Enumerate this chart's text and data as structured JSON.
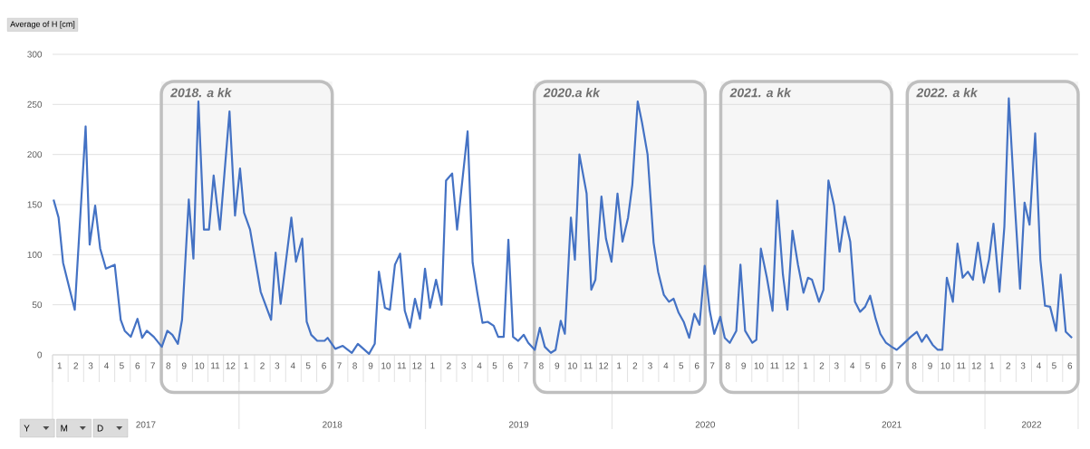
{
  "chart_data": {
    "type": "line",
    "ylabel": "Average of H [cm]",
    "annotations": [
      "Y",
      "M",
      "D"
    ],
    "xlim": [
      "2017-01-01",
      "2022-07-01"
    ],
    "ylim": [
      0,
      300
    ],
    "yticks": [
      0,
      50,
      100,
      150,
      200,
      250,
      300
    ],
    "grid": "y",
    "line_style": "solid",
    "xticks": [
      {
        "value": "2017-01-15",
        "label": "1"
      },
      {
        "value": "2017-02-15",
        "label": "2"
      },
      {
        "value": "2017-03-15",
        "label": "3"
      },
      {
        "value": "2017-04-15",
        "label": "4"
      },
      {
        "value": "2017-05-15",
        "label": "5"
      },
      {
        "value": "2017-06-15",
        "label": "6"
      },
      {
        "value": "2017-07-15",
        "label": "7"
      },
      {
        "value": "2017-08-15",
        "label": "8"
      },
      {
        "value": "2017-09-15",
        "label": "9"
      },
      {
        "value": "2017-10-15",
        "label": "10"
      },
      {
        "value": "2017-11-15",
        "label": "11"
      },
      {
        "value": "2017-12-15",
        "label": "12"
      },
      {
        "value": "2018-01-15",
        "label": "1"
      },
      {
        "value": "2018-02-15",
        "label": "2"
      },
      {
        "value": "2018-03-15",
        "label": "3"
      },
      {
        "value": "2018-04-15",
        "label": "4"
      },
      {
        "value": "2018-05-15",
        "label": "5"
      },
      {
        "value": "2018-06-15",
        "label": "6"
      },
      {
        "value": "2018-07-15",
        "label": "7"
      },
      {
        "value": "2018-08-15",
        "label": "8"
      },
      {
        "value": "2018-09-15",
        "label": "9"
      },
      {
        "value": "2018-10-15",
        "label": "10"
      },
      {
        "value": "2018-11-15",
        "label": "11"
      },
      {
        "value": "2018-12-15",
        "label": "12"
      },
      {
        "value": "2019-01-15",
        "label": "1"
      },
      {
        "value": "2019-02-15",
        "label": "2"
      },
      {
        "value": "2019-03-15",
        "label": "3"
      },
      {
        "value": "2019-04-15",
        "label": "4"
      },
      {
        "value": "2019-05-15",
        "label": "5"
      },
      {
        "value": "2019-06-15",
        "label": "6"
      },
      {
        "value": "2019-07-15",
        "label": "7"
      },
      {
        "value": "2019-08-15",
        "label": "8"
      },
      {
        "value": "2019-09-15",
        "label": "9"
      },
      {
        "value": "2019-10-15",
        "label": "10"
      },
      {
        "value": "2019-11-15",
        "label": "11"
      },
      {
        "value": "2019-12-15",
        "label": "12"
      },
      {
        "value": "2020-01-15",
        "label": "1"
      },
      {
        "value": "2020-02-15",
        "label": "2"
      },
      {
        "value": "2020-03-15",
        "label": "3"
      },
      {
        "value": "2020-04-15",
        "label": "4"
      },
      {
        "value": "2020-05-15",
        "label": "5"
      },
      {
        "value": "2020-06-15",
        "label": "6"
      },
      {
        "value": "2020-07-15",
        "label": "7"
      },
      {
        "value": "2020-08-15",
        "label": "8"
      },
      {
        "value": "2020-09-15",
        "label": "9"
      },
      {
        "value": "2020-10-15",
        "label": "10"
      },
      {
        "value": "2020-11-15",
        "label": "11"
      },
      {
        "value": "2020-12-15",
        "label": "12"
      },
      {
        "value": "2021-01-15",
        "label": "1"
      },
      {
        "value": "2021-02-15",
        "label": "2"
      },
      {
        "value": "2021-03-15",
        "label": "3"
      },
      {
        "value": "2021-04-15",
        "label": "4"
      },
      {
        "value": "2021-05-15",
        "label": "5"
      },
      {
        "value": "2021-06-15",
        "label": "6"
      },
      {
        "value": "2021-07-15",
        "label": "7"
      },
      {
        "value": "2021-08-15",
        "label": "8"
      },
      {
        "value": "2021-09-15",
        "label": "9"
      },
      {
        "value": "2021-10-15",
        "label": "10"
      },
      {
        "value": "2021-11-15",
        "label": "11"
      },
      {
        "value": "2021-12-15",
        "label": "12"
      },
      {
        "value": "2022-01-15",
        "label": "1"
      },
      {
        "value": "2022-02-15",
        "label": "2"
      },
      {
        "value": "2022-03-15",
        "label": "3"
      },
      {
        "value": "2022-04-15",
        "label": "4"
      },
      {
        "value": "2022-05-15",
        "label": "5"
      },
      {
        "value": "2022-06-15",
        "label": "6"
      }
    ],
    "x2lim": [
      "2017-01-01",
      "2022-07-01"
    ],
    "x2ticks": [
      {
        "value": "2017-07-01",
        "label": "2017"
      },
      {
        "value": "2018-07-01",
        "label": "2018"
      },
      {
        "value": "2019-07-01",
        "label": "2019"
      },
      {
        "value": "2020-07-01",
        "label": "2020"
      },
      {
        "value": "2021-07-01",
        "label": "2021"
      },
      {
        "value": "2022-04-01",
        "label": "2022"
      }
    ],
    "bands": [
      {
        "axis": "x",
        "from": "2017-08-01",
        "to": "2018-07-01",
        "label": "2018. a kk"
      },
      {
        "axis": "x",
        "from": "2019-08-01",
        "to": "2020-07-01",
        "label": "2020.a kk"
      },
      {
        "axis": "x",
        "from": "2020-08-01",
        "to": "2021-07-01",
        "label": "2021. a kk"
      },
      {
        "axis": "x",
        "from": "2021-08-01",
        "to": "2022-07-01",
        "label": "2022. a kk"
      }
    ],
    "series": [
      {
        "color": "#4472c4",
        "x": [
          "2017-01-03",
          "2017-01-13",
          "2017-01-22",
          "2017-02-13",
          "2017-03-05",
          "2017-03-13",
          "2017-03-24",
          "2017-04-03",
          "2017-04-14",
          "2017-05-01",
          "2017-05-13",
          "2017-05-21",
          "2017-06-02",
          "2017-06-15",
          "2017-06-24",
          "2017-07-03",
          "2017-07-17",
          "2017-08-02",
          "2017-08-13",
          "2017-08-23",
          "2017-09-03",
          "2017-09-11",
          "2017-09-24",
          "2017-10-03",
          "2017-10-13",
          "2017-10-24",
          "2017-11-03",
          "2017-11-12",
          "2017-11-24",
          "2017-12-13",
          "2017-12-24",
          "2018-01-03",
          "2018-01-11",
          "2018-01-23",
          "2018-02-12",
          "2018-03-03",
          "2018-03-12",
          "2018-03-22",
          "2018-04-12",
          "2018-04-21",
          "2018-05-03",
          "2018-05-12",
          "2018-05-21",
          "2018-06-02",
          "2018-06-16",
          "2018-06-22",
          "2018-07-07",
          "2018-07-22",
          "2018-08-09",
          "2018-08-21",
          "2018-09-12",
          "2018-09-23",
          "2018-10-01",
          "2018-10-13",
          "2018-10-23",
          "2018-11-02",
          "2018-11-12",
          "2018-11-21",
          "2018-12-01",
          "2018-12-11",
          "2018-12-21",
          "2018-12-31",
          "2019-01-10",
          "2019-01-22",
          "2019-02-02",
          "2019-02-10",
          "2019-02-21",
          "2019-03-02",
          "2019-03-23",
          "2019-04-02",
          "2019-04-11",
          "2019-04-21",
          "2019-05-01",
          "2019-05-13",
          "2019-05-22",
          "2019-06-02",
          "2019-06-11",
          "2019-06-20",
          "2019-06-30",
          "2019-07-11",
          "2019-07-20",
          "2019-08-02",
          "2019-08-12",
          "2019-08-22",
          "2019-09-03",
          "2019-09-12",
          "2019-09-22",
          "2019-09-30",
          "2019-10-12",
          "2019-10-20",
          "2019-10-29",
          "2019-11-12",
          "2019-11-21",
          "2019-11-29",
          "2019-12-11",
          "2019-12-20",
          "2019-12-31",
          "2020-01-12",
          "2020-01-22",
          "2020-02-02",
          "2020-02-10",
          "2020-02-20",
          "2020-02-28",
          "2020-03-10",
          "2020-03-22",
          "2020-03-31",
          "2020-04-11",
          "2020-04-21",
          "2020-04-30",
          "2020-05-10",
          "2020-05-20",
          "2020-05-31",
          "2020-06-10",
          "2020-06-20",
          "2020-06-30",
          "2020-07-10",
          "2020-07-19",
          "2020-07-31",
          "2020-08-09",
          "2020-08-19",
          "2020-09-01",
          "2020-09-09",
          "2020-09-18",
          "2020-10-02",
          "2020-10-10",
          "2020-10-19",
          "2020-10-31",
          "2020-11-11",
          "2020-11-20",
          "2020-12-01",
          "2020-12-10",
          "2020-12-20",
          "2020-12-31",
          "2021-01-11",
          "2021-01-20",
          "2021-01-28",
          "2021-02-10",
          "2021-02-18",
          "2021-02-27",
          "2021-03-10",
          "2021-03-21",
          "2021-03-31",
          "2021-04-11",
          "2021-04-20",
          "2021-04-30",
          "2021-05-10",
          "2021-05-20",
          "2021-05-31",
          "2021-06-09",
          "2021-06-20",
          "2021-07-01",
          "2021-07-11",
          "2021-07-24",
          "2021-08-08",
          "2021-08-20",
          "2021-08-30",
          "2021-09-08",
          "2021-09-20",
          "2021-09-30",
          "2021-10-09",
          "2021-10-18",
          "2021-10-30",
          "2021-11-08",
          "2021-11-18",
          "2021-11-28",
          "2021-12-08",
          "2021-12-18",
          "2021-12-30",
          "2022-01-09",
          "2022-01-18",
          "2022-01-30",
          "2022-02-08",
          "2022-02-16",
          "2022-02-27",
          "2022-03-09",
          "2022-03-18",
          "2022-03-28",
          "2022-04-08",
          "2022-04-18",
          "2022-04-27",
          "2022-05-07",
          "2022-05-19",
          "2022-05-28",
          "2022-06-07",
          "2022-06-19"
        ],
        "values": [
          155,
          137,
          92,
          45,
          228,
          110,
          149,
          106,
          86,
          90,
          35,
          24,
          18,
          36,
          17,
          24,
          18,
          8,
          24,
          20,
          11,
          35,
          155,
          96,
          253,
          125,
          125,
          179,
          125,
          243,
          139,
          186,
          142,
          125,
          63,
          35,
          102,
          51,
          137,
          93,
          116,
          33,
          20,
          14,
          14,
          17,
          6,
          9,
          2,
          11,
          1,
          11,
          83,
          47,
          45,
          90,
          101,
          44,
          27,
          56,
          36,
          86,
          47,
          75,
          50,
          174,
          181,
          125,
          223,
          92,
          62,
          32,
          33,
          29,
          18,
          18,
          115,
          18,
          14,
          20,
          12,
          5,
          27,
          8,
          2,
          5,
          34,
          21,
          137,
          95,
          200,
          161,
          65,
          75,
          158,
          116,
          93,
          161,
          113,
          137,
          170,
          253,
          232,
          200,
          112,
          83,
          60,
          53,
          56,
          42,
          33,
          17,
          41,
          30,
          89,
          44,
          21,
          38,
          17,
          12,
          24,
          90,
          24,
          12,
          15,
          106,
          77,
          44,
          154,
          80,
          45,
          124,
          90,
          62,
          77,
          75,
          53,
          65,
          174,
          149,
          103,
          138,
          113,
          53,
          43,
          48,
          59,
          36,
          21,
          12,
          8,
          5,
          11,
          18,
          23,
          13,
          20,
          10,
          5,
          5,
          77,
          53,
          111,
          77,
          83,
          75,
          112,
          72,
          95,
          131,
          63,
          128,
          256,
          149,
          66,
          152,
          130,
          221,
          95,
          49,
          48,
          24,
          80,
          23,
          17
        ]
      }
    ]
  }
}
